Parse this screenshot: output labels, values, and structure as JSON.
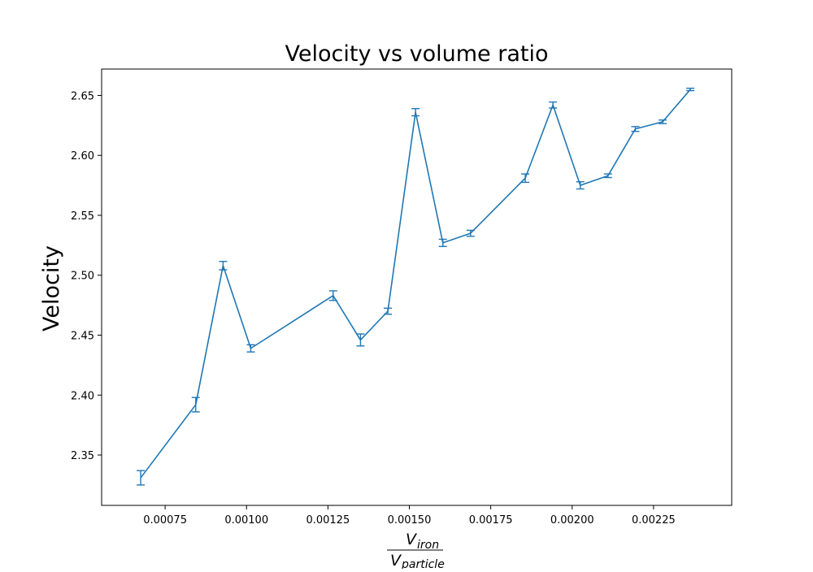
{
  "chart_data": {
    "type": "line",
    "title": "Velocity vs volume ratio",
    "ylabel": "Velocity",
    "xlabel": {
      "numerator": {
        "base": "V",
        "sub": "iron"
      },
      "denominator": {
        "base": "V",
        "sub": "particle"
      }
    },
    "xlim": [
      0.000555,
      0.00249
    ],
    "ylim": [
      2.308,
      2.672
    ],
    "x_ticks": [
      {
        "value": 0.00075,
        "label": "0.00075"
      },
      {
        "value": 0.001,
        "label": "0.00100"
      },
      {
        "value": 0.00125,
        "label": "0.00125"
      },
      {
        "value": 0.0015,
        "label": "0.00150"
      },
      {
        "value": 0.00175,
        "label": "0.00175"
      },
      {
        "value": 0.002,
        "label": "0.00200"
      },
      {
        "value": 0.00225,
        "label": "0.00225"
      }
    ],
    "y_ticks": [
      {
        "value": 2.35,
        "label": "2.35"
      },
      {
        "value": 2.4,
        "label": "2.40"
      },
      {
        "value": 2.45,
        "label": "2.45"
      },
      {
        "value": 2.5,
        "label": "2.50"
      },
      {
        "value": 2.55,
        "label": "2.55"
      },
      {
        "value": 2.6,
        "label": "2.60"
      },
      {
        "value": 2.65,
        "label": "2.65"
      }
    ],
    "grid": false,
    "series": [
      {
        "color": "#1f77b4",
        "x": [
          0.000675,
          0.000844,
          0.000928,
          0.001013,
          0.001266,
          0.00135,
          0.001434,
          0.001519,
          0.001603,
          0.001688,
          0.001856,
          0.001941,
          0.002025,
          0.00211,
          0.002194,
          0.002278,
          0.002363
        ],
        "y": [
          2.331,
          2.392,
          2.508,
          2.439,
          2.483,
          2.446,
          2.47,
          2.636,
          2.527,
          2.535,
          2.581,
          2.642,
          2.575,
          2.583,
          2.622,
          2.628,
          2.655
        ],
        "yerr": [
          0.006,
          0.006,
          0.0035,
          0.003,
          0.004,
          0.005,
          0.0025,
          0.003,
          0.003,
          0.0025,
          0.0035,
          0.0025,
          0.003,
          0.0015,
          0.002,
          0.0015,
          0.001
        ]
      }
    ]
  }
}
